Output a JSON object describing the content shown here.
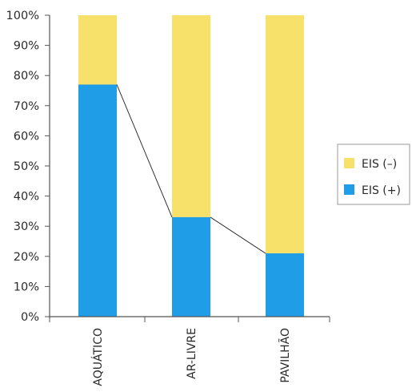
{
  "colors": {
    "positive": "#1f9de6",
    "negative": "#f8e16a",
    "axis": "#555555",
    "connector": "#333333",
    "text": "#2b2b2b"
  },
  "chart_data": {
    "type": "bar",
    "stacked": true,
    "title": "",
    "xlabel": "",
    "ylabel": "",
    "ylim": [
      0,
      100
    ],
    "ytick_step": 10,
    "ytick_labels": [
      "0%",
      "10%",
      "20%",
      "30%",
      "40%",
      "50%",
      "60%",
      "70%",
      "80%",
      "90%",
      "100%"
    ],
    "categories": [
      "AQUÁTICO",
      "AR-LIVRE",
      "PAVILHÃO"
    ],
    "series": [
      {
        "name": "EIS (+)",
        "color": "#1f9de6",
        "values": [
          77,
          33,
          21
        ]
      },
      {
        "name": "EIS (–)",
        "color": "#f8e16a",
        "values": [
          23,
          67,
          79
        ]
      }
    ],
    "connector_line": true,
    "grid": false,
    "legend": {
      "position": "right",
      "items": [
        "EIS (–)",
        "EIS (+)"
      ]
    }
  }
}
